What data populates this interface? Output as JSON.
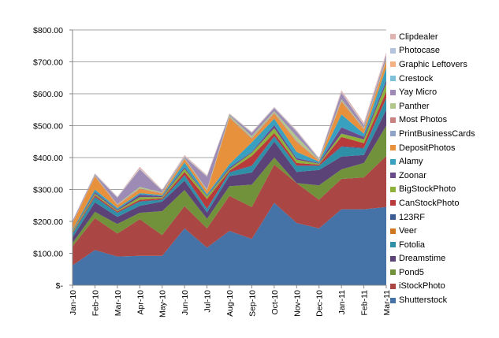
{
  "chart_data": {
    "type": "area",
    "stacked": true,
    "categories": [
      "Jan-10",
      "Feb-10",
      "Mar-10",
      "Apr-10",
      "May-10",
      "Jun-10",
      "Jul-10",
      "Aug-10",
      "Sep-10",
      "Oct-10",
      "Nov-10",
      "Dec-10",
      "Jan-11",
      "Feb-11",
      "Mar-11"
    ],
    "ylim": [
      0,
      800
    ],
    "yticks": [
      "$-",
      "$100.00",
      "$200.00",
      "$300.00",
      "$400.00",
      "$500.00",
      "$600.00",
      "$700.00",
      "$800.00"
    ],
    "legend_position": "right",
    "series": [
      {
        "name": "Shutterstock",
        "color": "#4572A7",
        "values": [
          62,
          110,
          90,
          92,
          92,
          178,
          118,
          170,
          145,
          258,
          195,
          178,
          238,
          238,
          245
        ]
      },
      {
        "name": "iStockPhoto",
        "color": "#AA4643",
        "values": [
          60,
          100,
          72,
          115,
          65,
          70,
          60,
          110,
          100,
          120,
          125,
          90,
          95,
          100,
          160
        ]
      },
      {
        "name": "Pond5",
        "color": "#71913B",
        "values": [
          10,
          20,
          30,
          20,
          75,
          50,
          30,
          30,
          70,
          22,
          0,
          45,
          30,
          45,
          95
        ]
      },
      {
        "name": "Dreamstime",
        "color": "#5B4378",
        "values": [
          18,
          30,
          22,
          22,
          30,
          30,
          20,
          32,
          38,
          50,
          35,
          48,
          40,
          25,
          50
        ]
      },
      {
        "name": "Fotolia",
        "color": "#2F8FA6",
        "values": [
          10,
          15,
          12,
          12,
          5,
          15,
          10,
          10,
          20,
          15,
          18,
          12,
          30,
          20,
          35
        ]
      },
      {
        "name": "Veer",
        "color": "#D07720",
        "values": [
          0,
          0,
          0,
          0,
          0,
          0,
          0,
          0,
          0,
          0,
          0,
          0,
          0,
          0,
          0
        ]
      },
      {
        "name": "123RF",
        "color": "#3B5D93",
        "values": [
          2,
          2,
          2,
          2,
          2,
          2,
          2,
          2,
          2,
          2,
          2,
          2,
          2,
          2,
          2
        ]
      },
      {
        "name": "CanStockPhoto",
        "color": "#B93A3A",
        "values": [
          3,
          5,
          3,
          5,
          3,
          10,
          30,
          5,
          30,
          10,
          8,
          3,
          30,
          15,
          20
        ]
      },
      {
        "name": "BigStockPhoto",
        "color": "#8EB13B",
        "values": [
          5,
          5,
          3,
          8,
          4,
          10,
          8,
          5,
          10,
          15,
          10,
          3,
          10,
          12,
          25
        ]
      },
      {
        "name": "Zoonar",
        "color": "#6A4B89",
        "values": [
          2,
          5,
          3,
          8,
          3,
          5,
          2,
          5,
          3,
          10,
          5,
          2,
          20,
          8,
          10
        ]
      },
      {
        "name": "Alamy",
        "color": "#39A0C0",
        "values": [
          2,
          8,
          5,
          5,
          3,
          15,
          5,
          10,
          30,
          20,
          20,
          4,
          40,
          10,
          40
        ]
      },
      {
        "name": "DepositPhotos",
        "color": "#E8913C",
        "values": [
          20,
          40,
          8,
          12,
          5,
          10,
          10,
          145,
          10,
          15,
          30,
          2,
          40,
          12,
          20
        ]
      },
      {
        "name": "PrintBusinessCards",
        "color": "#8FA4C7",
        "values": [
          0,
          0,
          0,
          0,
          0,
          0,
          0,
          0,
          0,
          0,
          0,
          0,
          0,
          0,
          0
        ]
      },
      {
        "name": "Most Photos",
        "color": "#C98280",
        "values": [
          2,
          2,
          2,
          2,
          2,
          2,
          2,
          3,
          3,
          3,
          3,
          2,
          3,
          3,
          3
        ]
      },
      {
        "name": "Panther",
        "color": "#B0C68A",
        "values": [
          1,
          2,
          2,
          5,
          2,
          2,
          3,
          5,
          6,
          5,
          15,
          2,
          5,
          3,
          5
        ]
      },
      {
        "name": "Yay Micro",
        "color": "#9D8BB5",
        "values": [
          5,
          3,
          20,
          55,
          5,
          3,
          40,
          3,
          10,
          10,
          15,
          2,
          20,
          8,
          10
        ]
      },
      {
        "name": "Crestock",
        "color": "#7FC1D6",
        "values": [
          0,
          1,
          1,
          1,
          1,
          1,
          1,
          1,
          1,
          1,
          1,
          1,
          1,
          1,
          1
        ]
      },
      {
        "name": "Graphic Leftovers",
        "color": "#F4B183",
        "values": [
          0,
          1,
          1,
          1,
          1,
          1,
          1,
          1,
          1,
          1,
          1,
          1,
          1,
          1,
          1
        ]
      },
      {
        "name": "Photocase",
        "color": "#B4C4DE",
        "values": [
          0,
          1,
          1,
          1,
          1,
          1,
          1,
          1,
          1,
          1,
          1,
          1,
          1,
          1,
          1
        ]
      },
      {
        "name": "Clipdealer",
        "color": "#E0B2B0",
        "values": [
          0,
          1,
          1,
          5,
          1,
          3,
          2,
          1,
          1,
          1,
          2,
          1,
          5,
          6,
          7
        ]
      }
    ]
  }
}
